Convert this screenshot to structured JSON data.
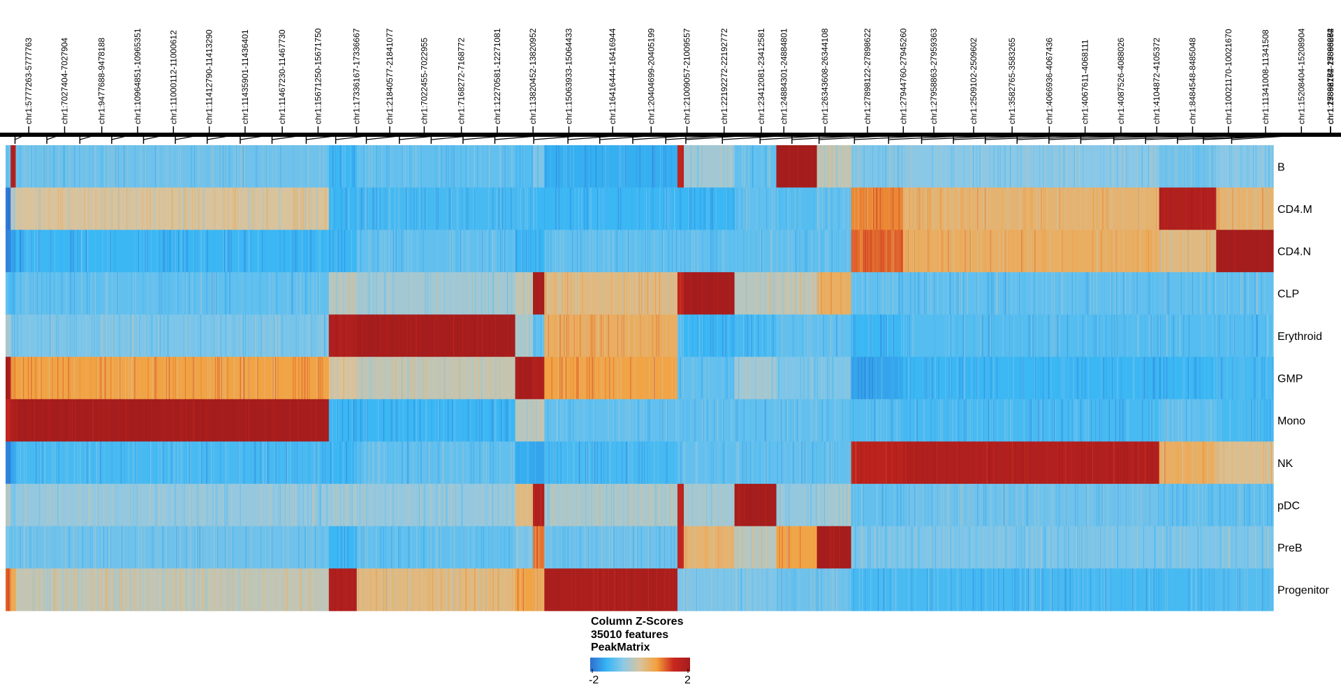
{
  "chart_data": {
    "type": "heatmap",
    "rows": [
      "B",
      "CD4.M",
      "CD4.N",
      "CLP",
      "Erythroid",
      "GMP",
      "Mono",
      "NK",
      "pDC",
      "PreB",
      "Progenitor"
    ],
    "column_labels": [
      "chr1:5777263-5777763",
      "chr1:7027404-7027904",
      "chr1:9477688-9478188",
      "chr1:10964851-10965351",
      "chr1:11000112-11000612",
      "chr1:11412790-11413290",
      "chr1:11435901-11436401",
      "chr1:11467230-11467730",
      "chr1:15671250-15671750",
      "chr1:17336167-17336667",
      "chr1:21840577-21841077",
      "chr1:7022455-7022955",
      "chr1:7168272-7168772",
      "chr1:12270581-12271081",
      "chr1:13820452-13820952",
      "chr1:15063933-15064433",
      "chr1:16416444-16416944",
      "chr1:20404699-20405199",
      "chr1:21009057-21009557",
      "chr1:22192272-22192772",
      "chr1:23412081-23412581",
      "chr1:24884301-24884801",
      "chr1:26343608-26344108",
      "chr1:27898122-27898622",
      "chr1:27944760-27945260",
      "chr1:27958863-27959363",
      "chr1:2509102-2509602",
      "chr1:3582765-3583265",
      "chr1:4066936-4067436",
      "chr1:4067611-4068111",
      "chr1:4087526-4088026",
      "chr1:4104872-4105372",
      "chr1:8484548-8485048",
      "chr1:10021170-10021670",
      "chr1:11341008-11341508",
      "chr1:15208404-15208904",
      "chr1:15898174-15898674",
      "chr1:17862762-17863262",
      "chr1:23866184-23866684"
    ],
    "column_blocks": [
      {
        "range": [
          0,
          0.004
        ],
        "values": [
          -1.0,
          -2.0,
          -1.8,
          -1.0,
          -0.5,
          2.0,
          1.5,
          -1.8,
          -0.3,
          -0.8,
          1.0
        ]
      },
      {
        "range": [
          0.004,
          0.008
        ],
        "values": [
          1.8,
          -0.3,
          -1.5,
          -1.2,
          -0.8,
          0.8,
          1.8,
          -1.5,
          -0.8,
          -1.0,
          0.5
        ]
      },
      {
        "range": [
          0.008,
          0.255
        ],
        "values": [
          -0.9,
          0.0,
          -1.3,
          -1.0,
          -0.8,
          0.6,
          2.0,
          -1.2,
          -0.6,
          -0.9,
          -0.2
        ]
      },
      {
        "range": [
          0.255,
          0.277
        ],
        "values": [
          -1.3,
          -1.3,
          -1.3,
          -0.3,
          1.8,
          0.0,
          -1.3,
          -1.3,
          -0.5,
          -1.3,
          1.8
        ]
      },
      {
        "range": [
          0.277,
          0.402
        ],
        "values": [
          -1.0,
          -1.2,
          -1.0,
          -0.5,
          2.0,
          -0.2,
          -1.3,
          -1.0,
          -0.6,
          -1.0,
          0.2
        ]
      },
      {
        "range": [
          0.402,
          0.416
        ],
        "values": [
          -1.1,
          -1.2,
          -1.3,
          -0.2,
          -0.4,
          2.0,
          -0.3,
          -1.4,
          0.2,
          -0.8,
          0.6
        ]
      },
      {
        "range": [
          0.416,
          0.425
        ],
        "values": [
          -0.8,
          -1.3,
          -1.3,
          2.0,
          -1.0,
          1.8,
          -0.2,
          -1.5,
          1.8,
          0.9,
          0.4
        ]
      },
      {
        "range": [
          0.425,
          0.53
        ],
        "values": [
          -1.4,
          -1.3,
          -1.0,
          0.2,
          0.4,
          0.6,
          -1.0,
          -1.2,
          -0.4,
          -0.9,
          1.9
        ]
      },
      {
        "range": [
          0.53,
          0.535
        ],
        "values": [
          1.5,
          -1.3,
          -1.0,
          1.5,
          -1.0,
          -1.0,
          -1.0,
          -1.0,
          1.5,
          1.5,
          -0.8
        ]
      },
      {
        "range": [
          0.535,
          0.575
        ],
        "values": [
          -0.5,
          -1.3,
          -1.0,
          2.0,
          -1.3,
          -1.0,
          -1.0,
          -1.0,
          -0.5,
          0.3,
          -0.8
        ]
      },
      {
        "range": [
          0.575,
          0.608
        ],
        "values": [
          -1.0,
          -1.0,
          -1.0,
          -0.3,
          -1.2,
          -0.5,
          -1.0,
          -1.0,
          2.0,
          -0.3,
          -0.8
        ]
      },
      {
        "range": [
          0.608,
          0.64
        ],
        "values": [
          2.0,
          -1.1,
          -1.0,
          -0.2,
          -1.0,
          -0.8,
          -1.0,
          -1.0,
          -0.6,
          0.6,
          -0.9
        ]
      },
      {
        "range": [
          0.64,
          0.667
        ],
        "values": [
          -0.2,
          -1.0,
          -1.0,
          0.4,
          -1.0,
          -0.8,
          -1.0,
          -1.0,
          -0.5,
          2.0,
          -0.9
        ]
      },
      {
        "range": [
          0.667,
          0.708
        ],
        "values": [
          -0.8,
          0.8,
          1.0,
          -1.0,
          -1.3,
          -1.5,
          -1.1,
          1.6,
          -1.0,
          -0.8,
          -1.2
        ]
      },
      {
        "range": [
          0.708,
          0.91
        ],
        "values": [
          -0.7,
          0.3,
          0.4,
          -1.0,
          -1.1,
          -1.3,
          -1.2,
          1.8,
          -0.9,
          -0.8,
          -1.2
        ]
      },
      {
        "range": [
          0.91,
          0.955
        ],
        "values": [
          -0.9,
          1.8,
          0.2,
          -1.0,
          -1.1,
          -1.3,
          -1.0,
          0.4,
          -1.0,
          -0.8,
          -1.2
        ]
      },
      {
        "range": [
          0.955,
          1.0
        ],
        "values": [
          -0.7,
          0.3,
          2.0,
          -1.0,
          -1.1,
          -1.2,
          -1.2,
          0.1,
          -1.0,
          -0.8,
          -1.1
        ]
      }
    ],
    "column_ticks": [
      0.008,
      0.035,
      0.063,
      0.09,
      0.117,
      0.144,
      0.171,
      0.199,
      0.226,
      0.255,
      0.28,
      0.306,
      0.334,
      0.361,
      0.388,
      0.415,
      0.448,
      0.477,
      0.504,
      0.532,
      0.56,
      0.577,
      0.608,
      0.64,
      0.667,
      0.69,
      0.72,
      0.749,
      0.777,
      0.804,
      0.831,
      0.858,
      0.885,
      0.912,
      0.94,
      0.967,
      0.994,
      1.016,
      1.04
    ],
    "color_scale": {
      "min": -2,
      "max": 2,
      "colors": [
        "#2d6fd1",
        "#37b6f5",
        "#8ec9e6",
        "#d8c39d",
        "#f4a03b",
        "#c9271f",
        "#a51d1d"
      ]
    },
    "legend": {
      "title_lines": [
        "Column Z-Scores",
        "35010 features",
        "PeakMatrix"
      ],
      "min_label": "-2",
      "max_label": "2"
    }
  }
}
